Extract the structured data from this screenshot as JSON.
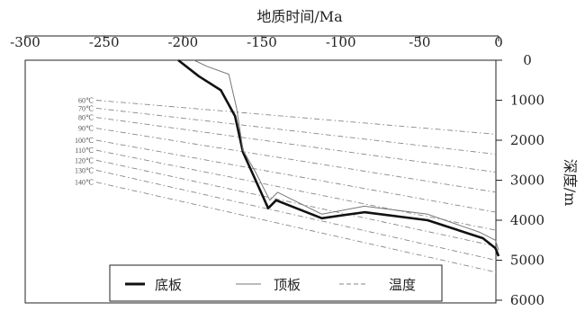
{
  "chart_data": {
    "type": "line",
    "xlabel": "地质时间/Ma",
    "ylabel": "深度/m",
    "xlim": [
      -300,
      0
    ],
    "ylim": [
      0,
      6000
    ],
    "x_ticks": [
      "-300",
      "-250",
      "-200",
      "-150",
      "-100",
      "-50",
      "0"
    ],
    "y_ticks": [
      "0",
      "1000",
      "2000",
      "3000",
      "4000",
      "5000",
      "6000"
    ],
    "x_tick_values": [
      -300,
      -250,
      -200,
      -150,
      -100,
      -50,
      0
    ],
    "y_tick_values": [
      0,
      1000,
      2000,
      3000,
      4000,
      5000,
      6000
    ],
    "legend_position": "bottom",
    "legend": [
      "底板",
      "顶板",
      "温度"
    ],
    "series": [
      {
        "name": "底板",
        "style": "thick-solid",
        "color": "#111111",
        "points": [
          [
            -203,
            0
          ],
          [
            -190,
            400
          ],
          [
            -176,
            750
          ],
          [
            -167,
            1400
          ],
          [
            -162,
            2300
          ],
          [
            -154,
            3000
          ],
          [
            -146,
            3700
          ],
          [
            -141,
            3500
          ],
          [
            -112,
            3950
          ],
          [
            -85,
            3800
          ],
          [
            -45,
            4000
          ],
          [
            -10,
            4450
          ],
          [
            -2,
            4700
          ],
          [
            0,
            4900
          ]
        ]
      },
      {
        "name": "顶板",
        "style": "thin-solid",
        "color": "#777777",
        "points": [
          [
            -193,
            0
          ],
          [
            -185,
            150
          ],
          [
            -171,
            350
          ],
          [
            -166,
            1200
          ],
          [
            -162,
            2250
          ],
          [
            -154,
            2800
          ],
          [
            -145,
            3500
          ],
          [
            -140,
            3300
          ],
          [
            -112,
            3850
          ],
          [
            -85,
            3650
          ],
          [
            -45,
            3850
          ],
          [
            -12,
            4300
          ],
          [
            -2,
            4500
          ],
          [
            0,
            4750
          ]
        ]
      }
    ],
    "isotherms": {
      "name": "温度",
      "style": "dashed",
      "color": "#888888",
      "labels": [
        "60℃",
        "70℃",
        "80℃",
        "90℃",
        "100℃",
        "110℃",
        "120℃",
        "130℃",
        "140℃"
      ],
      "start_depth": [
        1000,
        1200,
        1430,
        1700,
        2000,
        2250,
        2500,
        2750,
        3050
      ],
      "end_depth": [
        1850,
        2350,
        2800,
        3300,
        3800,
        4250,
        4650,
        5000,
        5300
      ]
    }
  }
}
